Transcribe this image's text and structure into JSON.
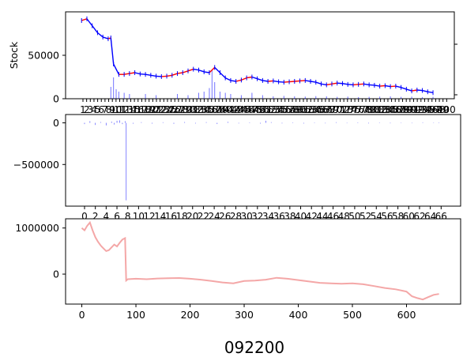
{
  "figure": {
    "title": "092200"
  },
  "chart_data": [
    {
      "type": "line",
      "panel": "price",
      "ylabel": "Stock",
      "xlim": [
        -30,
        700
      ],
      "ylim": [
        0,
        100000
      ],
      "yticks": [
        0,
        50000
      ],
      "ytick_labels": [
        "0",
        "50000"
      ],
      "xtick_labels": [
        "1",
        "2",
        "3",
        "4",
        "5",
        "6",
        "7",
        "8",
        "9",
        "10",
        "11",
        "12",
        "13",
        "14",
        "15",
        "16",
        "17",
        "18",
        "19",
        "20",
        "21",
        "22",
        "23",
        "24",
        "25",
        "26",
        "27",
        "28",
        "29",
        "30",
        "31",
        "32",
        "33",
        "34",
        "35",
        "36",
        "37",
        "38",
        "39",
        "40",
        "41",
        "42",
        "43",
        "44",
        "45",
        "46",
        "47",
        "48",
        "49",
        "50",
        "51",
        "52",
        "53",
        "54",
        "55",
        "56",
        "57",
        "58",
        "59",
        "60",
        "61",
        "62",
        "63",
        "64",
        "65",
        "66",
        "67",
        "68",
        "69",
        "70",
        "71",
        "72",
        "73",
        "74",
        "75",
        "76",
        "77",
        "78",
        "79",
        "80",
        "81",
        "82",
        "83",
        "84",
        "85",
        "86",
        "87",
        "88",
        "89",
        "90",
        "91",
        "92",
        "93",
        "94",
        "95",
        "96",
        "97",
        "98",
        "99",
        "100"
      ],
      "series": [
        {
          "kind": "candlestick-close",
          "color_up": "#ff0000",
          "color_down": "#0000ff",
          "x": [
            0,
            10,
            20,
            30,
            40,
            50,
            55,
            60,
            70,
            80,
            90,
            100,
            110,
            120,
            130,
            140,
            150,
            160,
            170,
            180,
            190,
            200,
            210,
            220,
            230,
            240,
            250,
            260,
            270,
            280,
            290,
            300,
            310,
            320,
            330,
            340,
            350,
            360,
            370,
            380,
            390,
            400,
            410,
            420,
            430,
            440,
            450,
            460,
            470,
            480,
            490,
            500,
            510,
            520,
            530,
            540,
            550,
            560,
            570,
            580,
            590,
            600,
            610,
            620,
            630,
            640,
            650,
            660
          ],
          "y": [
            90000,
            92000,
            84000,
            76000,
            71000,
            69000,
            70000,
            40000,
            28000,
            28000,
            29000,
            30000,
            28500,
            28000,
            27000,
            26000,
            25500,
            26000,
            27000,
            29000,
            30000,
            32000,
            34000,
            33000,
            31000,
            30000,
            36000,
            30000,
            24000,
            21000,
            20000,
            21500,
            24000,
            25000,
            23000,
            21000,
            20000,
            20500,
            19500,
            19000,
            19500,
            20000,
            20500,
            21000,
            20000,
            19000,
            17000,
            16000,
            17000,
            18000,
            17500,
            16500,
            16000,
            16500,
            17000,
            16000,
            15500,
            14500,
            15000,
            14000,
            14500,
            13000,
            11000,
            9000,
            10000,
            9500,
            8000,
            7000
          ]
        }
      ],
      "volume": {
        "color": "#0000ff",
        "x": [
          55,
          60,
          65,
          70,
          80,
          90,
          120,
          140,
          180,
          200,
          220,
          230,
          240,
          245,
          250,
          260,
          270,
          280,
          300,
          320,
          340,
          360,
          380,
          400,
          420,
          440,
          460,
          480,
          500,
          520,
          540,
          560,
          580,
          600,
          620,
          640,
          660
        ],
        "y": [
          5000,
          9000,
          4000,
          3000,
          2500,
          2000,
          2000,
          1500,
          2000,
          1500,
          2500,
          3000,
          4500,
          12000,
          7000,
          3000,
          2500,
          2000,
          1500,
          2500,
          1500,
          1000,
          1200,
          1000,
          900,
          1100,
          1000,
          800,
          900,
          700,
          800,
          900,
          1000,
          800,
          900,
          700,
          800
        ]
      }
    },
    {
      "type": "bar",
      "panel": "changes",
      "color": "#0000ff",
      "xlim": [
        -30,
        700
      ],
      "ylim": [
        -1000000,
        100000
      ],
      "yticks": [
        0,
        -500000
      ],
      "ytick_labels": [
        "0",
        "−500000"
      ],
      "xtick_labels": [
        "0",
        "2",
        "4",
        "6",
        "8",
        "10",
        "12",
        "14",
        "16",
        "18",
        "20",
        "22",
        "24",
        "26",
        "28",
        "30",
        "32",
        "34",
        "36",
        "38",
        "40",
        "42",
        "44",
        "46",
        "48",
        "50",
        "52",
        "54",
        "56",
        "58",
        "60",
        "62",
        "64",
        "66"
      ],
      "x": [
        5,
        15,
        25,
        35,
        45,
        55,
        60,
        65,
        70,
        75,
        80,
        82,
        95,
        110,
        130,
        150,
        170,
        190,
        210,
        230,
        250,
        270,
        290,
        310,
        330,
        340,
        350,
        370,
        390,
        410,
        430,
        450,
        470,
        490,
        510,
        530,
        550,
        570,
        590,
        610,
        630,
        650,
        660
      ],
      "values": [
        -15000,
        20000,
        -25000,
        10000,
        -30000,
        15000,
        -20000,
        25000,
        30000,
        -15000,
        20000,
        -930000,
        -10000,
        8000,
        -9000,
        7000,
        -12000,
        10000,
        -8000,
        9000,
        -14000,
        12000,
        -7000,
        6000,
        -9000,
        25000,
        8000,
        -7000,
        6000,
        -8000,
        5000,
        -6000,
        7000,
        -5000,
        6000,
        -7000,
        5000,
        -6000,
        4000,
        -5000,
        6000,
        -4000,
        5000
      ]
    },
    {
      "type": "line",
      "panel": "cumulative",
      "color": "#f4a7a7",
      "xlim": [
        -30,
        700
      ],
      "ylim": [
        -650000,
        1200000
      ],
      "xticks": [
        0,
        100,
        200,
        300,
        400,
        500,
        600
      ],
      "xtick_labels": [
        "0",
        "100",
        "200",
        "300",
        "400",
        "500",
        "600"
      ],
      "yticks": [
        1000000,
        0
      ],
      "ytick_labels": [
        "1000000",
        "0"
      ],
      "x": [
        0,
        5,
        10,
        15,
        20,
        25,
        30,
        35,
        40,
        45,
        50,
        55,
        60,
        65,
        70,
        75,
        80,
        82,
        85,
        100,
        120,
        140,
        160,
        180,
        200,
        220,
        240,
        260,
        280,
        300,
        320,
        340,
        360,
        380,
        400,
        420,
        440,
        460,
        480,
        500,
        520,
        540,
        560,
        580,
        600,
        610,
        620,
        630,
        640,
        650,
        660
      ],
      "y": [
        1000000,
        950000,
        1050000,
        1120000,
        950000,
        800000,
        700000,
        620000,
        560000,
        500000,
        520000,
        580000,
        640000,
        600000,
        680000,
        750000,
        780000,
        -140000,
        -110000,
        -100000,
        -110000,
        -95000,
        -90000,
        -85000,
        -100000,
        -120000,
        -150000,
        -180000,
        -200000,
        -150000,
        -140000,
        -120000,
        -80000,
        -100000,
        -130000,
        -160000,
        -190000,
        -200000,
        -210000,
        -200000,
        -220000,
        -260000,
        -300000,
        -330000,
        -380000,
        -480000,
        -520000,
        -550000,
        -500000,
        -450000,
        -430000
      ]
    }
  ]
}
